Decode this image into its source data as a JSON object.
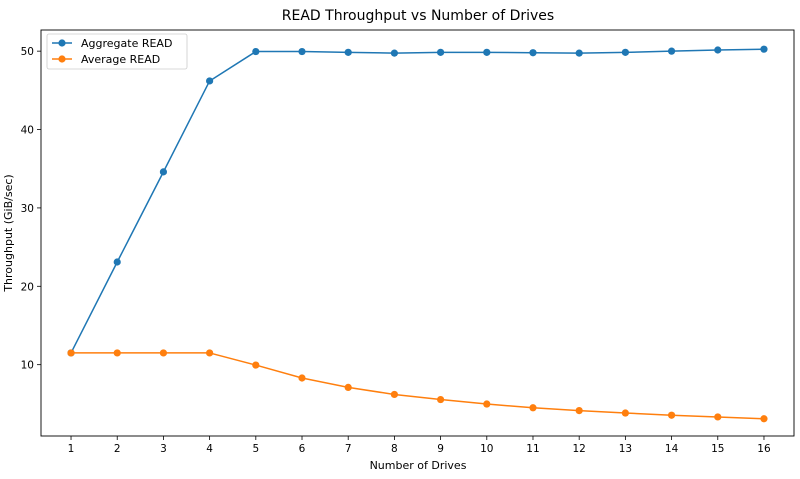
{
  "chart_data": {
    "type": "line",
    "title": "READ Throughput vs Number of Drives",
    "xlabel": "Number of Drives",
    "ylabel": "Throughput (GiB/sec)",
    "x": [
      1,
      2,
      3,
      4,
      5,
      6,
      7,
      8,
      9,
      10,
      11,
      12,
      13,
      14,
      15,
      16
    ],
    "xlim": [
      0.35,
      16.65
    ],
    "ylim": [
      0.9,
      52.7
    ],
    "yticks": [
      10,
      20,
      30,
      40,
      50
    ],
    "grid": false,
    "legend_position": "top-left",
    "series": [
      {
        "name": "Aggregate READ",
        "color": "#1f77b4",
        "values": [
          11.5,
          23.1,
          34.6,
          46.2,
          49.95,
          49.95,
          49.85,
          49.75,
          49.85,
          49.85,
          49.8,
          49.75,
          49.85,
          50.0,
          50.15,
          50.25
        ]
      },
      {
        "name": "Average READ",
        "color": "#ff7f0e",
        "values": [
          11.5,
          11.5,
          11.5,
          11.5,
          9.95,
          8.3,
          7.1,
          6.2,
          5.55,
          4.98,
          4.5,
          4.14,
          3.83,
          3.55,
          3.33,
          3.1
        ]
      }
    ]
  }
}
